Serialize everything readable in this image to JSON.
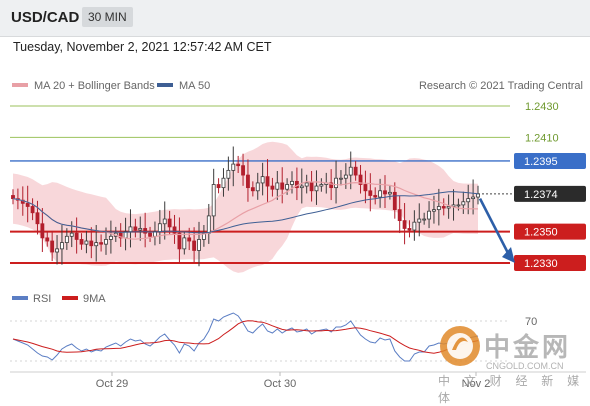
{
  "header": {
    "symbol": "USD/CAD",
    "timeframe": "30 MIN",
    "datetime": "Tuesday, November 2, 2021 12:57:42 AM CET"
  },
  "legend": {
    "ma20_label": "MA 20 + Bollinger Bands",
    "ma50_label": "MA 50",
    "ma20_color": "#e8a0a6",
    "ma50_color": "#3e5f94",
    "credit": "Research © 2021 Trading Central"
  },
  "rsi_legend": {
    "rsi_label": "RSI",
    "ma9_label": "9MA",
    "rsi_color": "#5b7ec4",
    "ma9_color": "#cc1e1e"
  },
  "watermark": {
    "title": "中金网",
    "site": "CNGOLD.COM.CN",
    "subtitle": "中 文 财 经 新 媒 体"
  },
  "chart_data": {
    "type": "candlestick",
    "price_range": [
      1.232,
      1.244
    ],
    "x_ticks": [
      "Oct 29",
      "Oct 30",
      "Nov 2"
    ],
    "current_price": "1.2374",
    "levels": [
      {
        "value": 1.243,
        "label": "1.2430",
        "kind": "target",
        "color": "#9bc25b"
      },
      {
        "value": 1.241,
        "label": "1.2410",
        "kind": "target",
        "color": "#9bc25b"
      },
      {
        "value": 1.2395,
        "label": "1.2395",
        "kind": "pivot",
        "color": "#3a6fc8"
      },
      {
        "value": 1.235,
        "label": "1.2350",
        "kind": "support",
        "color": "#cc1e1e"
      },
      {
        "value": 1.233,
        "label": "1.2330",
        "kind": "support",
        "color": "#cc1e1e"
      }
    ],
    "rsi_level": "70",
    "forecast": "down toward 1.2330",
    "closes": [
      1.2371,
      1.237,
      1.2368,
      1.2366,
      1.2362,
      1.2355,
      1.2346,
      1.2344,
      1.2337,
      1.2339,
      1.2343,
      1.2347,
      1.2349,
      1.2345,
      1.2342,
      1.2344,
      1.2341,
      1.2343,
      1.2342,
      1.2345,
      1.2347,
      1.2349,
      1.2346,
      1.235,
      1.2353,
      1.2351,
      1.2352,
      1.2349,
      1.2347,
      1.235,
      1.2355,
      1.2358,
      1.2353,
      1.2349,
      1.2339,
      1.2346,
      1.2344,
      1.2338,
      1.2345,
      1.2349,
      1.236,
      1.238,
      1.2378,
      1.2384,
      1.2389,
      1.2393,
      1.2392,
      1.2386,
      1.2378,
      1.2376,
      1.2381,
      1.2385,
      1.2379,
      1.2377,
      1.2381,
      1.2377,
      1.238,
      1.2382,
      1.2378,
      1.2379,
      1.2381,
      1.2376,
      1.2379,
      1.238,
      1.2381,
      1.2378,
      1.2384,
      1.2384,
      1.2386,
      1.2391,
      1.2386,
      1.238,
      1.2376,
      1.2373,
      1.2372,
      1.2376,
      1.2374,
      1.2375,
      1.2364,
      1.2357,
      1.2352,
      1.2351,
      1.2356,
      1.2358,
      1.2358,
      1.2363,
      1.2364,
      1.2366,
      1.2365,
      1.2366,
      1.2367,
      1.2367,
      1.2369,
      1.2371,
      1.2372,
      1.2374
    ],
    "rsi": [
      52,
      50,
      48,
      46,
      42,
      38,
      35,
      34,
      31,
      36,
      42,
      45,
      47,
      43,
      40,
      42,
      39,
      41,
      40,
      44,
      46,
      48,
      45,
      49,
      52,
      50,
      51,
      47,
      45,
      49,
      54,
      57,
      51,
      46,
      38,
      47,
      45,
      40,
      48,
      52,
      60,
      72,
      70,
      74,
      76,
      78,
      75,
      68,
      60,
      58,
      63,
      67,
      60,
      58,
      62,
      58,
      61,
      63,
      59,
      60,
      62,
      57,
      60,
      61,
      62,
      59,
      64,
      64,
      66,
      70,
      63,
      56,
      52,
      49,
      48,
      53,
      51,
      52,
      40,
      34,
      30,
      30,
      37,
      39,
      39,
      45,
      46,
      48,
      47,
      48,
      49,
      49,
      51,
      53,
      54,
      55
    ]
  }
}
